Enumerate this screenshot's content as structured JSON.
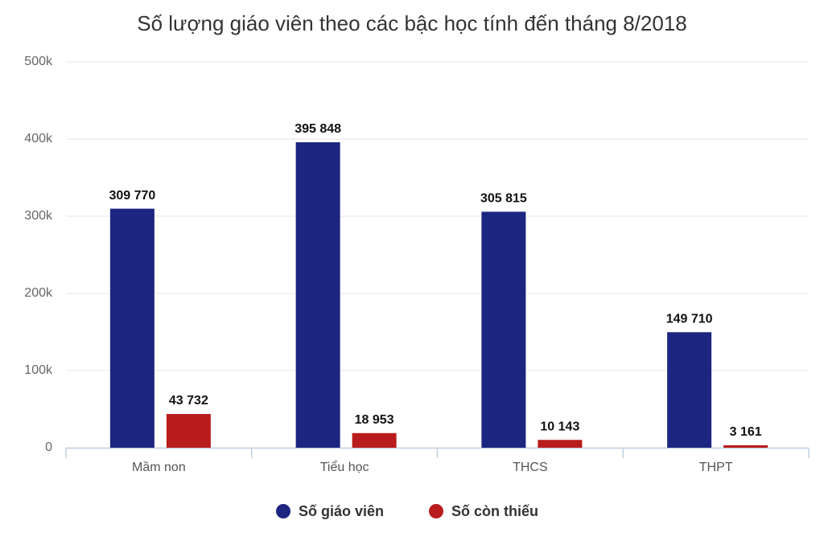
{
  "chart_data": {
    "type": "bar",
    "title": "Số lượng giáo viên theo các bậc học tính đến tháng 8/2018",
    "categories": [
      "Mầm non",
      "Tiểu học",
      "THCS",
      "THPT"
    ],
    "series": [
      {
        "name": "Số giáo viên",
        "color": "#1c2580",
        "values": [
          309770,
          395848,
          305815,
          149710
        ],
        "value_labels": [
          "309 770",
          "395 848",
          "305 815",
          "149 710"
        ]
      },
      {
        "name": "Số còn thiếu",
        "color": "#b91c1c",
        "values": [
          43732,
          18953,
          10143,
          3161
        ],
        "value_labels": [
          "43 732",
          "18 953",
          "10 143",
          "3 161"
        ]
      }
    ],
    "ylim": [
      0,
      500000
    ],
    "yticks": [
      0,
      {
        "value": 100000,
        "label": "100k"
      },
      {
        "value": 200000,
        "label": "200k"
      },
      {
        "value": 300000,
        "label": "300k"
      },
      {
        "value": 400000,
        "label": "400k"
      },
      {
        "value": 500000,
        "label": "500k"
      }
    ],
    "grid": true
  }
}
